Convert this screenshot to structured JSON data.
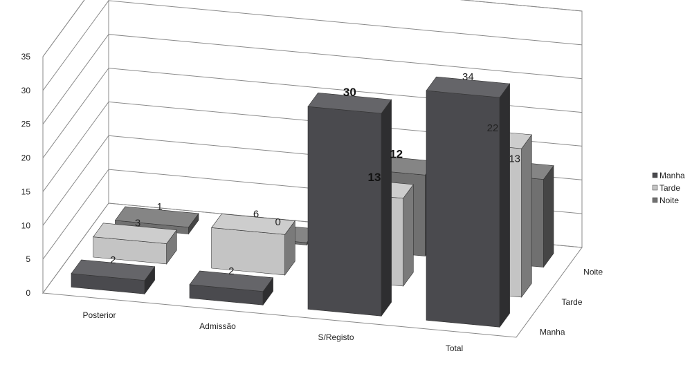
{
  "chart_data": {
    "type": "bar",
    "categories": [
      "Posterior",
      "Admissão",
      "S/Registo",
      "Total"
    ],
    "series": [
      {
        "name": "Manha",
        "values": [
          2,
          2,
          30,
          34
        ],
        "color": "#4a4a4e"
      },
      {
        "name": "Tarde",
        "values": [
          3,
          6,
          13,
          22
        ],
        "color": "#c4c4c4"
      },
      {
        "name": "Noite",
        "values": [
          1,
          0,
          12,
          13
        ],
        "color": "#707070"
      }
    ],
    "y_ticks": [
      "0",
      "5",
      "10",
      "15",
      "20",
      "25",
      "30",
      "35"
    ],
    "ylim": [
      0,
      35
    ],
    "depth_labels": [
      "Manha",
      "Tarde",
      "Noite"
    ],
    "legend": [
      "Manha",
      "Tarde",
      "Noite"
    ],
    "legend_position": "right",
    "grid": true,
    "style": "3d-column"
  }
}
